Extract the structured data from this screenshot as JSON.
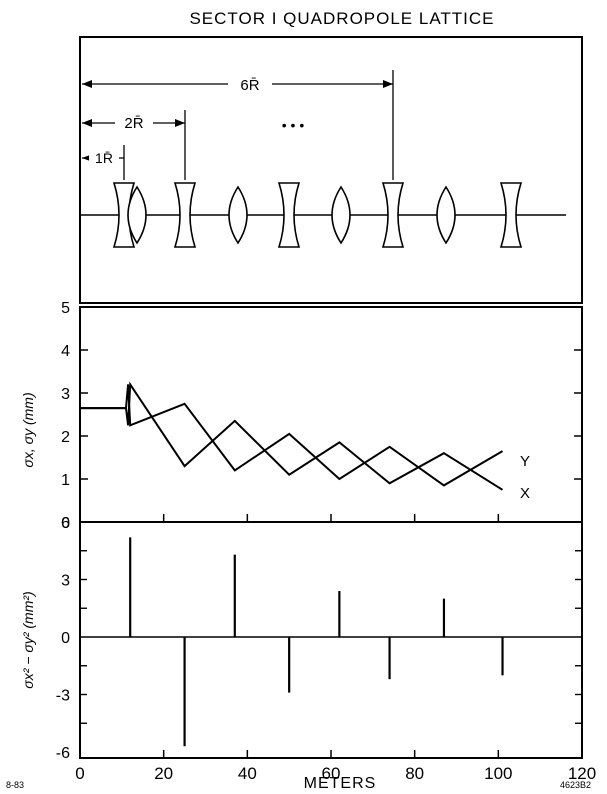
{
  "title": "SECTOR I QUADROPOLE LATTICE",
  "footer": {
    "left_code": "8-83",
    "right_code": "4623B2"
  },
  "chart_data": [
    {
      "type": "diagram",
      "panel": "lattice",
      "quad_types": [
        "D",
        "F",
        "D",
        "F",
        "D",
        "F",
        "D",
        "F",
        "D"
      ],
      "dimension_labels": [
        "6R̄",
        "2R̄",
        "1R̄"
      ],
      "ellipsis": "• • •"
    },
    {
      "type": "line",
      "panel": "beam-size",
      "ylabel": "σx, σy  (mm)",
      "ylim": [
        0,
        5
      ],
      "xlim": [
        0,
        120
      ],
      "yticks": [
        "0",
        "1",
        "2",
        "3",
        "4",
        "5"
      ],
      "series": [
        {
          "name": "Y",
          "points": [
            [
              0,
              2.65
            ],
            [
              9,
              2.65
            ],
            [
              11,
              2.65
            ],
            [
              11.5,
              2.25
            ],
            [
              12,
              3.2
            ],
            [
              25,
              1.3
            ],
            [
              37,
              2.35
            ],
            [
              50,
              1.1
            ],
            [
              62,
              1.85
            ],
            [
              74,
              0.9
            ],
            [
              87,
              1.6
            ],
            [
              101,
              0.75
            ]
          ]
        },
        {
          "name": "X",
          "points": [
            [
              0,
              2.65
            ],
            [
              9,
              2.65
            ],
            [
              11,
              2.65
            ],
            [
              11.5,
              3.2
            ],
            [
              12,
              2.25
            ],
            [
              25,
              2.75
            ],
            [
              37,
              1.2
            ],
            [
              50,
              2.05
            ],
            [
              62,
              1.0
            ],
            [
              74,
              1.75
            ],
            [
              87,
              0.85
            ],
            [
              101,
              1.65
            ]
          ]
        }
      ]
    },
    {
      "type": "bar",
      "panel": "difference",
      "ylabel": "σx² − σy²  (mm²)",
      "xlabel": "METERS",
      "ylim": [
        -6,
        6
      ],
      "xlim": [
        0,
        120
      ],
      "yticks": [
        "-6",
        "-3",
        "0",
        "3",
        "6"
      ],
      "xticks": [
        "0",
        "20",
        "40",
        "60",
        "80",
        "100",
        "120"
      ],
      "x": [
        12,
        25,
        37,
        50,
        62,
        74,
        87,
        101
      ],
      "values": [
        5.2,
        -5.7,
        4.3,
        -2.9,
        2.4,
        -2.2,
        2.0,
        -2.0
      ]
    }
  ]
}
